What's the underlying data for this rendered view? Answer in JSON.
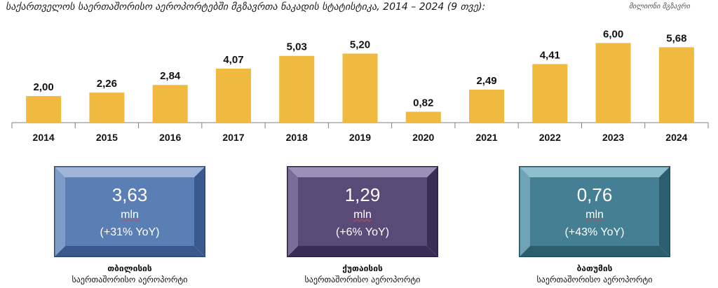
{
  "header": {
    "title": "საქართველოს საერთაშორისო აეროპორტებში მგზავრთა ნაკადის სტატისტიკა, 2014 – 2024 (9 თვე):",
    "unit_note": "მილიონი მგზავრი"
  },
  "chart_data": {
    "type": "bar",
    "categories": [
      "2014",
      "2015",
      "2016",
      "2017",
      "2018",
      "2019",
      "2020",
      "2021",
      "2022",
      "2023",
      "2024"
    ],
    "values": [
      2.0,
      2.26,
      2.84,
      4.07,
      5.03,
      5.2,
      0.82,
      2.49,
      4.41,
      6.0,
      5.68
    ],
    "value_labels": [
      "2,00",
      "2,26",
      "2,84",
      "4,07",
      "5,03",
      "5,20",
      "0,82",
      "2,49",
      "4,41",
      "6,00",
      "5,68"
    ],
    "ylim": [
      0,
      6.6
    ],
    "grid": false,
    "bar_color": "#F0B93F"
  },
  "cards": [
    {
      "value": "3,63",
      "unit": "mln",
      "change": "(+31% YoY)",
      "caption_bold": "თბილისის",
      "caption": "საერთაშორისო აეროპორტი",
      "face": "#5A7FB5",
      "light": "#9FB6DA",
      "mid": "#7E9CC8",
      "dark": "#3A5A8E",
      "border": "#2F4A75"
    },
    {
      "value": "1,29",
      "unit": "mln",
      "change": "(+6% YoY)",
      "caption_bold": "ქუთაისის",
      "caption": "საერთაშორისო აეროპორტი",
      "face": "#5A4A78",
      "light": "#9C8FB8",
      "mid": "#7B6C99",
      "dark": "#3A2D55",
      "border": "#2C2145"
    },
    {
      "value": "0,76",
      "unit": "mln",
      "change": "(+43% YoY)",
      "caption_bold": "ბათუმის",
      "caption": "საერთაშორისო აეროპორტი",
      "face": "#457F94",
      "light": "#8FBFCF",
      "mid": "#6FA3B5",
      "dark": "#2C5E70",
      "border": "#234C5C"
    }
  ]
}
